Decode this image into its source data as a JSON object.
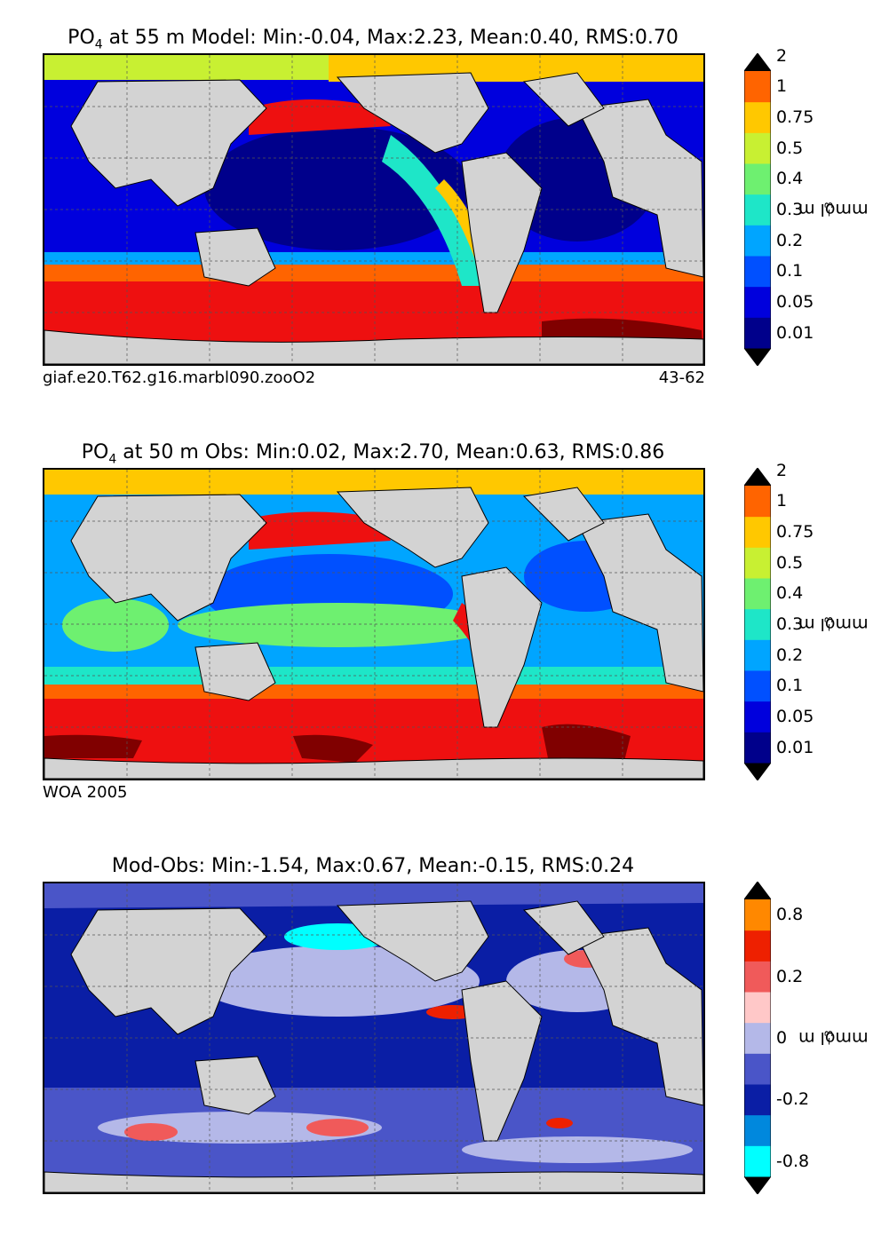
{
  "chart_data": [
    {
      "type": "heatmap",
      "title_prefix": "PO",
      "title_sub": "4",
      "title_rest": " at 55 m Model: Min:-0.04, Max:2.23, Mean:0.40, RMS:0.70",
      "footer_left": "giaf.e20.T62.g16.marbl090.zooO2",
      "footer_right": "43-62",
      "colorbar_levels": [
        "0.01",
        "0.05",
        "0.1",
        "0.2",
        "0.3",
        "0.4",
        "0.5",
        "0.75",
        "1",
        "2"
      ],
      "colorbar_colors": [
        "#00008b",
        "#0000dd",
        "#0050ff",
        "#00a5ff",
        "#1ee6c8",
        "#6ef070",
        "#c8f032",
        "#ffc800",
        "#ff6400",
        "#ee1010",
        "#800000"
      ],
      "units_base": "mmol m",
      "units_exp": "−3"
    },
    {
      "type": "heatmap",
      "title_prefix": "PO",
      "title_sub": "4",
      "title_rest": " at 50 m Obs: Min:0.02, Max:2.70, Mean:0.63, RMS:0.86",
      "footer_left": "WOA 2005",
      "footer_right": "",
      "colorbar_levels": [
        "0.01",
        "0.05",
        "0.1",
        "0.2",
        "0.3",
        "0.4",
        "0.5",
        "0.75",
        "1",
        "2"
      ],
      "colorbar_colors": [
        "#00008b",
        "#0000dd",
        "#0050ff",
        "#00a5ff",
        "#1ee6c8",
        "#6ef070",
        "#c8f032",
        "#ffc800",
        "#ff6400",
        "#ee1010",
        "#800000"
      ],
      "units_base": "mmol m",
      "units_exp": "−3"
    },
    {
      "type": "heatmap",
      "title_prefix": "",
      "title_sub": "",
      "title_rest": "Mod-Obs: Min:-1.54, Max:0.67, Mean:-0.15, RMS:0.24",
      "footer_left": "",
      "footer_right": "",
      "colorbar_levels": [
        "-0.8",
        "",
        "-0.2",
        "",
        "0",
        "",
        "0.2",
        "",
        "0.8",
        ""
      ],
      "colorbar_colors": [
        "#00ffff",
        "#0088dd",
        "#0a1ea5",
        "#4a55c8",
        "#b4b8e8",
        "#ffc8c8",
        "#f05a5a",
        "#ee2000",
        "#ff8800",
        "#ffee00",
        "#ffff80"
      ],
      "units_base": "mmol m",
      "units_exp": "−3"
    }
  ]
}
